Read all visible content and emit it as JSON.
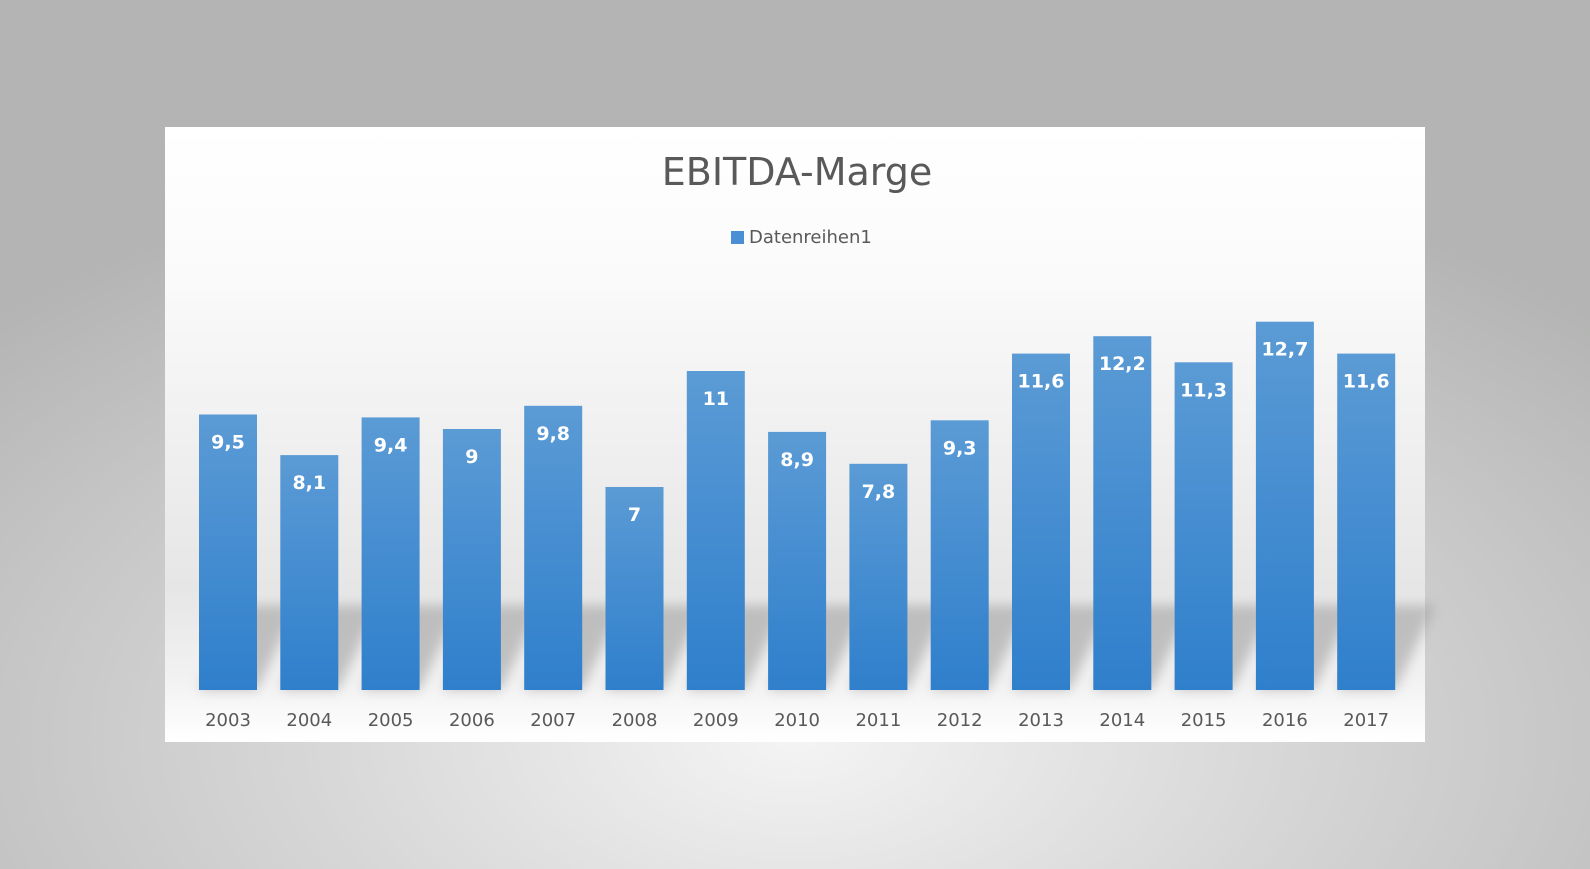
{
  "chart_data": {
    "type": "bar",
    "title": "EBITDA-Marge",
    "xlabel": "",
    "ylabel": "",
    "categories": [
      "2003",
      "2004",
      "2005",
      "2006",
      "2007",
      "2008",
      "2009",
      "2010",
      "2011",
      "2012",
      "2013",
      "2014",
      "2015",
      "2016",
      "2017"
    ],
    "series": [
      {
        "name": "Datenreihen1",
        "values": [
          9.5,
          8.1,
          9.4,
          9,
          9.8,
          7,
          11,
          8.9,
          7.8,
          9.3,
          11.6,
          12.2,
          11.3,
          12.7,
          11.6
        ]
      }
    ],
    "data_labels": [
      "9,5",
      "8,1",
      "9,4",
      "9",
      "9,8",
      "7",
      "11",
      "8,9",
      "7,8",
      "9,3",
      "11,6",
      "12,2",
      "11,3",
      "12,7",
      "11,6"
    ],
    "legend": "top",
    "grid": false,
    "y_axis_visible": false,
    "colors": {
      "bar_top": "#5b9bd5",
      "bar_bottom": "#2f7fcc",
      "legend_marker": "#4a8fd6"
    }
  }
}
